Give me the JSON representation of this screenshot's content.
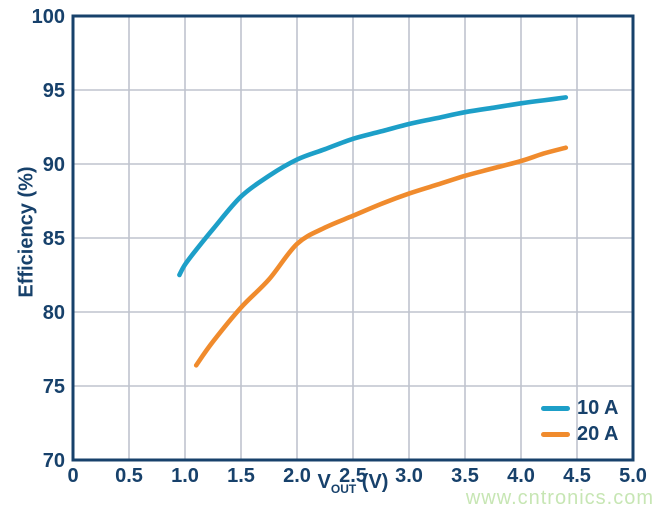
{
  "chart_data": {
    "type": "line",
    "title": "",
    "ylabel": "Efficiency (%)",
    "xlabel_main": "V",
    "xlabel_sub": "OUT",
    "xlabel_unit": "(V)",
    "xlim": [
      0,
      5
    ],
    "ylim": [
      70,
      100
    ],
    "grid": true,
    "legend_position": "bottom-right-inside",
    "x_ticks": [
      {
        "v": 0,
        "label": "0"
      },
      {
        "v": 0.5,
        "label": "0.5"
      },
      {
        "v": 1,
        "label": "1.0"
      },
      {
        "v": 1.5,
        "label": "1.5"
      },
      {
        "v": 2,
        "label": "2.0"
      },
      {
        "v": 2.5,
        "label": "2.5"
      },
      {
        "v": 3,
        "label": "3.0"
      },
      {
        "v": 3.5,
        "label": "3.5"
      },
      {
        "v": 4,
        "label": "4.0"
      },
      {
        "v": 4.5,
        "label": "4.5"
      },
      {
        "v": 5,
        "label": "5.0"
      }
    ],
    "y_ticks": [
      {
        "v": 70,
        "label": "70"
      },
      {
        "v": 75,
        "label": "75"
      },
      {
        "v": 80,
        "label": "80"
      },
      {
        "v": 85,
        "label": "85"
      },
      {
        "v": 90,
        "label": "90"
      },
      {
        "v": 95,
        "label": "95"
      },
      {
        "v": 100,
        "label": "100"
      }
    ],
    "series": [
      {
        "name": "10 A",
        "color": "#1d9fc8",
        "points": [
          [
            0.95,
            82.5
          ],
          [
            1.0,
            83.2
          ],
          [
            1.1,
            84.2
          ],
          [
            1.25,
            85.6
          ],
          [
            1.5,
            87.8
          ],
          [
            1.75,
            89.2
          ],
          [
            2.0,
            90.3
          ],
          [
            2.25,
            91.0
          ],
          [
            2.5,
            91.7
          ],
          [
            2.75,
            92.2
          ],
          [
            3.0,
            92.7
          ],
          [
            3.25,
            93.1
          ],
          [
            3.5,
            93.5
          ],
          [
            3.75,
            93.8
          ],
          [
            4.0,
            94.1
          ],
          [
            4.2,
            94.3
          ],
          [
            4.4,
            94.5
          ]
        ]
      },
      {
        "name": "20 A",
        "color": "#f08b2d",
        "points": [
          [
            1.1,
            76.4
          ],
          [
            1.25,
            78.0
          ],
          [
            1.5,
            80.3
          ],
          [
            1.75,
            82.2
          ],
          [
            2.0,
            84.6
          ],
          [
            2.25,
            85.7
          ],
          [
            2.5,
            86.5
          ],
          [
            2.75,
            87.3
          ],
          [
            3.0,
            88.0
          ],
          [
            3.25,
            88.6
          ],
          [
            3.5,
            89.2
          ],
          [
            3.75,
            89.7
          ],
          [
            4.0,
            90.2
          ],
          [
            4.2,
            90.7
          ],
          [
            4.4,
            91.1
          ]
        ]
      }
    ]
  },
  "colors": {
    "axis": "#17416b",
    "text": "#17416b",
    "grid": "#bfc3ce",
    "background": "#ffffff",
    "watermark": "#c7e6b4"
  },
  "watermark": "www.cntronics.com"
}
